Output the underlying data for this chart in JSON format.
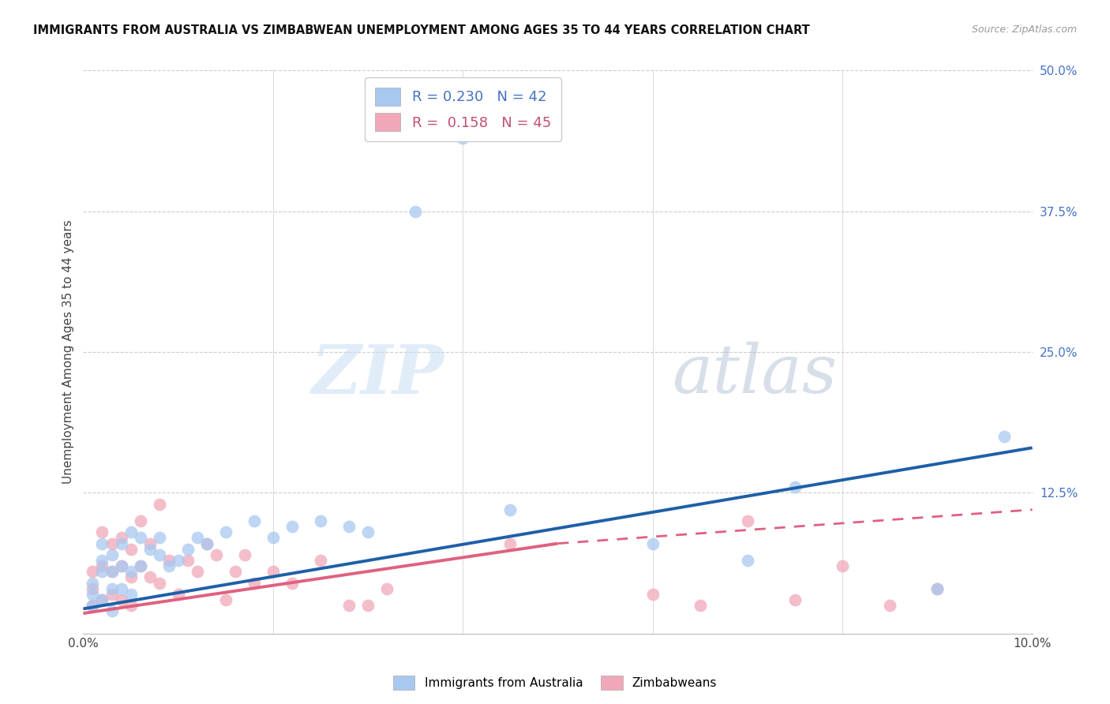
{
  "title": "IMMIGRANTS FROM AUSTRALIA VS ZIMBABWEAN UNEMPLOYMENT AMONG AGES 35 TO 44 YEARS CORRELATION CHART",
  "source": "Source: ZipAtlas.com",
  "ylabel": "Unemployment Among Ages 35 to 44 years",
  "xlim": [
    0.0,
    0.1
  ],
  "ylim": [
    0.0,
    0.5
  ],
  "xticks": [
    0.0,
    0.02,
    0.04,
    0.06,
    0.08,
    0.1
  ],
  "xticklabels": [
    "0.0%",
    "",
    "",
    "",
    "",
    "10.0%"
  ],
  "yticks_right": [
    0.0,
    0.125,
    0.25,
    0.375,
    0.5
  ],
  "yticklabels_right": [
    "",
    "12.5%",
    "25.0%",
    "37.5%",
    "50.0%"
  ],
  "australia_line_color": "#1e5fa8",
  "zimbabwe_line_color": "#e06080",
  "australia_dot_color": "#a8c8f0",
  "zimbabwe_dot_color": "#f0a8b8",
  "background_color": "#ffffff",
  "watermark_zip": "ZIP",
  "watermark_atlas": "atlas",
  "grid_color": "#cccccc",
  "aus_line_x0": 0.0,
  "aus_line_y0": 0.022,
  "aus_line_x1": 0.1,
  "aus_line_y1": 0.165,
  "zim_line_solid_x0": 0.0,
  "zim_line_solid_y0": 0.018,
  "zim_line_solid_x1": 0.05,
  "zim_line_solid_y1": 0.08,
  "zim_line_dash_x0": 0.05,
  "zim_line_dash_y0": 0.08,
  "zim_line_dash_x1": 0.1,
  "zim_line_dash_y1": 0.11,
  "australia_scatter_x": [
    0.001,
    0.001,
    0.001,
    0.002,
    0.002,
    0.002,
    0.002,
    0.003,
    0.003,
    0.003,
    0.003,
    0.004,
    0.004,
    0.004,
    0.005,
    0.005,
    0.005,
    0.006,
    0.006,
    0.007,
    0.008,
    0.008,
    0.009,
    0.01,
    0.011,
    0.012,
    0.013,
    0.015,
    0.018,
    0.02,
    0.022,
    0.025,
    0.028,
    0.03,
    0.035,
    0.04,
    0.045,
    0.06,
    0.07,
    0.075,
    0.09,
    0.097
  ],
  "australia_scatter_y": [
    0.025,
    0.035,
    0.045,
    0.03,
    0.055,
    0.065,
    0.08,
    0.02,
    0.04,
    0.055,
    0.07,
    0.04,
    0.06,
    0.08,
    0.035,
    0.055,
    0.09,
    0.06,
    0.085,
    0.075,
    0.07,
    0.085,
    0.06,
    0.065,
    0.075,
    0.085,
    0.08,
    0.09,
    0.1,
    0.085,
    0.095,
    0.1,
    0.095,
    0.09,
    0.375,
    0.44,
    0.11,
    0.08,
    0.065,
    0.13,
    0.04,
    0.175
  ],
  "zimbabwe_scatter_x": [
    0.001,
    0.001,
    0.001,
    0.002,
    0.002,
    0.002,
    0.003,
    0.003,
    0.003,
    0.004,
    0.004,
    0.004,
    0.005,
    0.005,
    0.005,
    0.006,
    0.006,
    0.007,
    0.007,
    0.008,
    0.008,
    0.009,
    0.01,
    0.011,
    0.012,
    0.013,
    0.014,
    0.015,
    0.016,
    0.017,
    0.018,
    0.02,
    0.022,
    0.025,
    0.028,
    0.03,
    0.032,
    0.045,
    0.06,
    0.065,
    0.07,
    0.075,
    0.08,
    0.085,
    0.09
  ],
  "zimbabwe_scatter_y": [
    0.025,
    0.04,
    0.055,
    0.03,
    0.06,
    0.09,
    0.035,
    0.055,
    0.08,
    0.03,
    0.06,
    0.085,
    0.025,
    0.05,
    0.075,
    0.06,
    0.1,
    0.05,
    0.08,
    0.045,
    0.115,
    0.065,
    0.035,
    0.065,
    0.055,
    0.08,
    0.07,
    0.03,
    0.055,
    0.07,
    0.045,
    0.055,
    0.045,
    0.065,
    0.025,
    0.025,
    0.04,
    0.08,
    0.035,
    0.025,
    0.1,
    0.03,
    0.06,
    0.025,
    0.04
  ],
  "legend_label_aus": "R = 0.230   N = 42",
  "legend_label_zim": "R =  0.158   N = 45",
  "legend_color_aus": "#4472c4",
  "legend_color_zim": "#c05070"
}
